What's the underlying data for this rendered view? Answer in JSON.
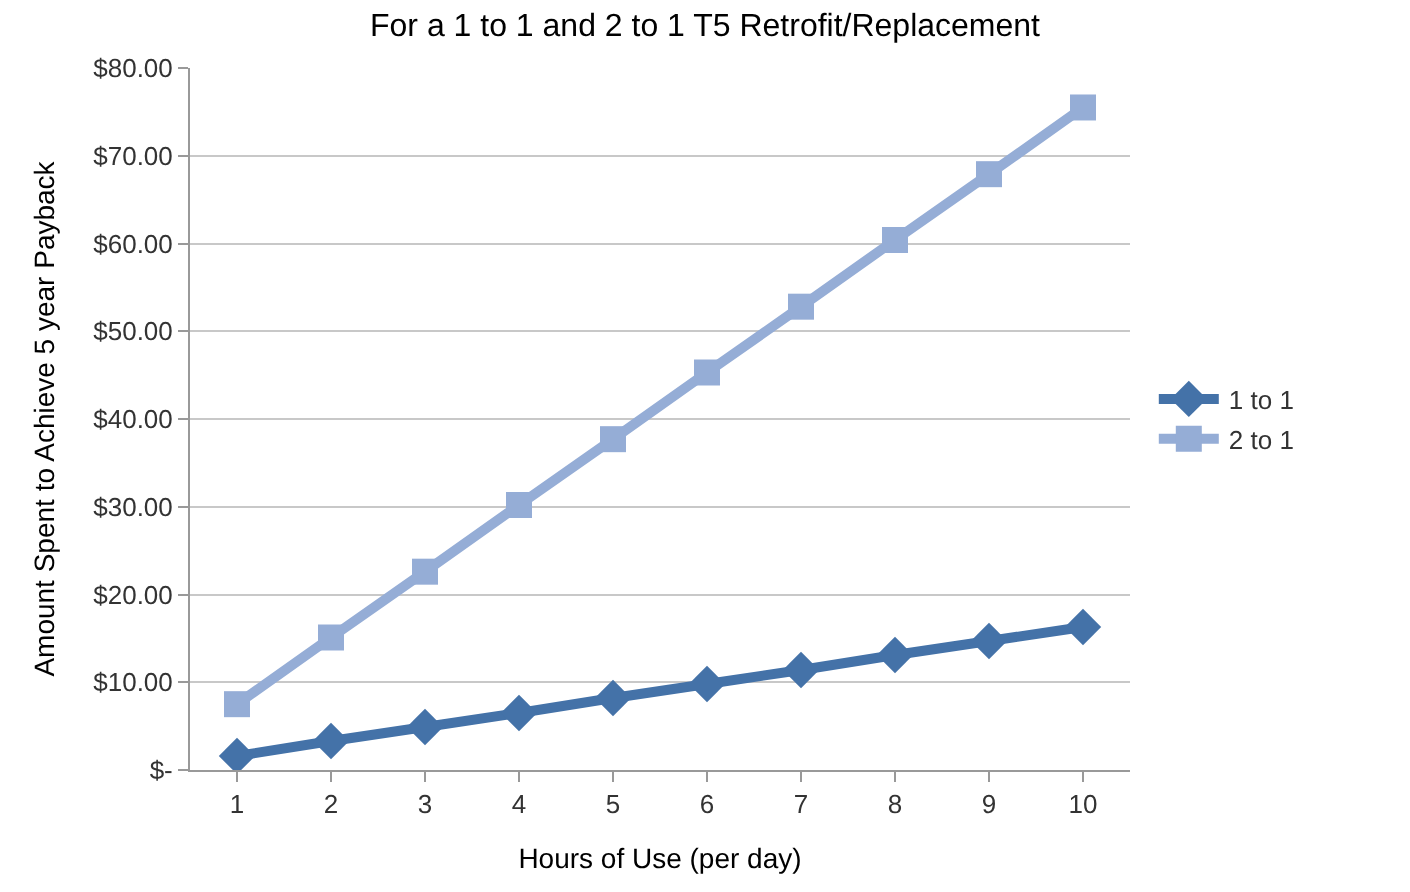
{
  "chart_data": {
    "type": "line",
    "title": "For a 1 to 1 and 2 to 1 T5 Retrofit/Replacement",
    "xlabel": "Hours of Use (per day)",
    "ylabel": "Amount Spent to Achieve 5 year Payback",
    "x": [
      1,
      2,
      3,
      4,
      5,
      6,
      7,
      8,
      9,
      10
    ],
    "series": [
      {
        "name": "1 to 1",
        "color": "#4472a8",
        "marker": "diamond",
        "values": [
          1.6,
          3.3,
          4.9,
          6.5,
          8.2,
          9.8,
          11.4,
          13.1,
          14.7,
          16.3
        ]
      },
      {
        "name": "2 to 1",
        "color": "#95add6",
        "marker": "square",
        "values": [
          7.5,
          15.1,
          22.6,
          30.2,
          37.7,
          45.3,
          52.8,
          60.4,
          67.9,
          75.5
        ]
      }
    ],
    "xlim": [
      0.5,
      10.5
    ],
    "xticks": [
      1,
      2,
      3,
      4,
      5,
      6,
      7,
      8,
      9,
      10
    ],
    "ylim": [
      0,
      80
    ],
    "yticks": [
      {
        "value": 0,
        "label": "$-"
      },
      {
        "value": 10,
        "label": "$10.00"
      },
      {
        "value": 20,
        "label": "$20.00"
      },
      {
        "value": 30,
        "label": "$30.00"
      },
      {
        "value": 40,
        "label": "$40.00"
      },
      {
        "value": 50,
        "label": "$50.00"
      },
      {
        "value": 60,
        "label": "$60.00"
      },
      {
        "value": 70,
        "label": "$70.00"
      },
      {
        "value": 80,
        "label": "$80.00"
      }
    ],
    "grid": "y",
    "legend": "right",
    "line_style": "solid"
  }
}
